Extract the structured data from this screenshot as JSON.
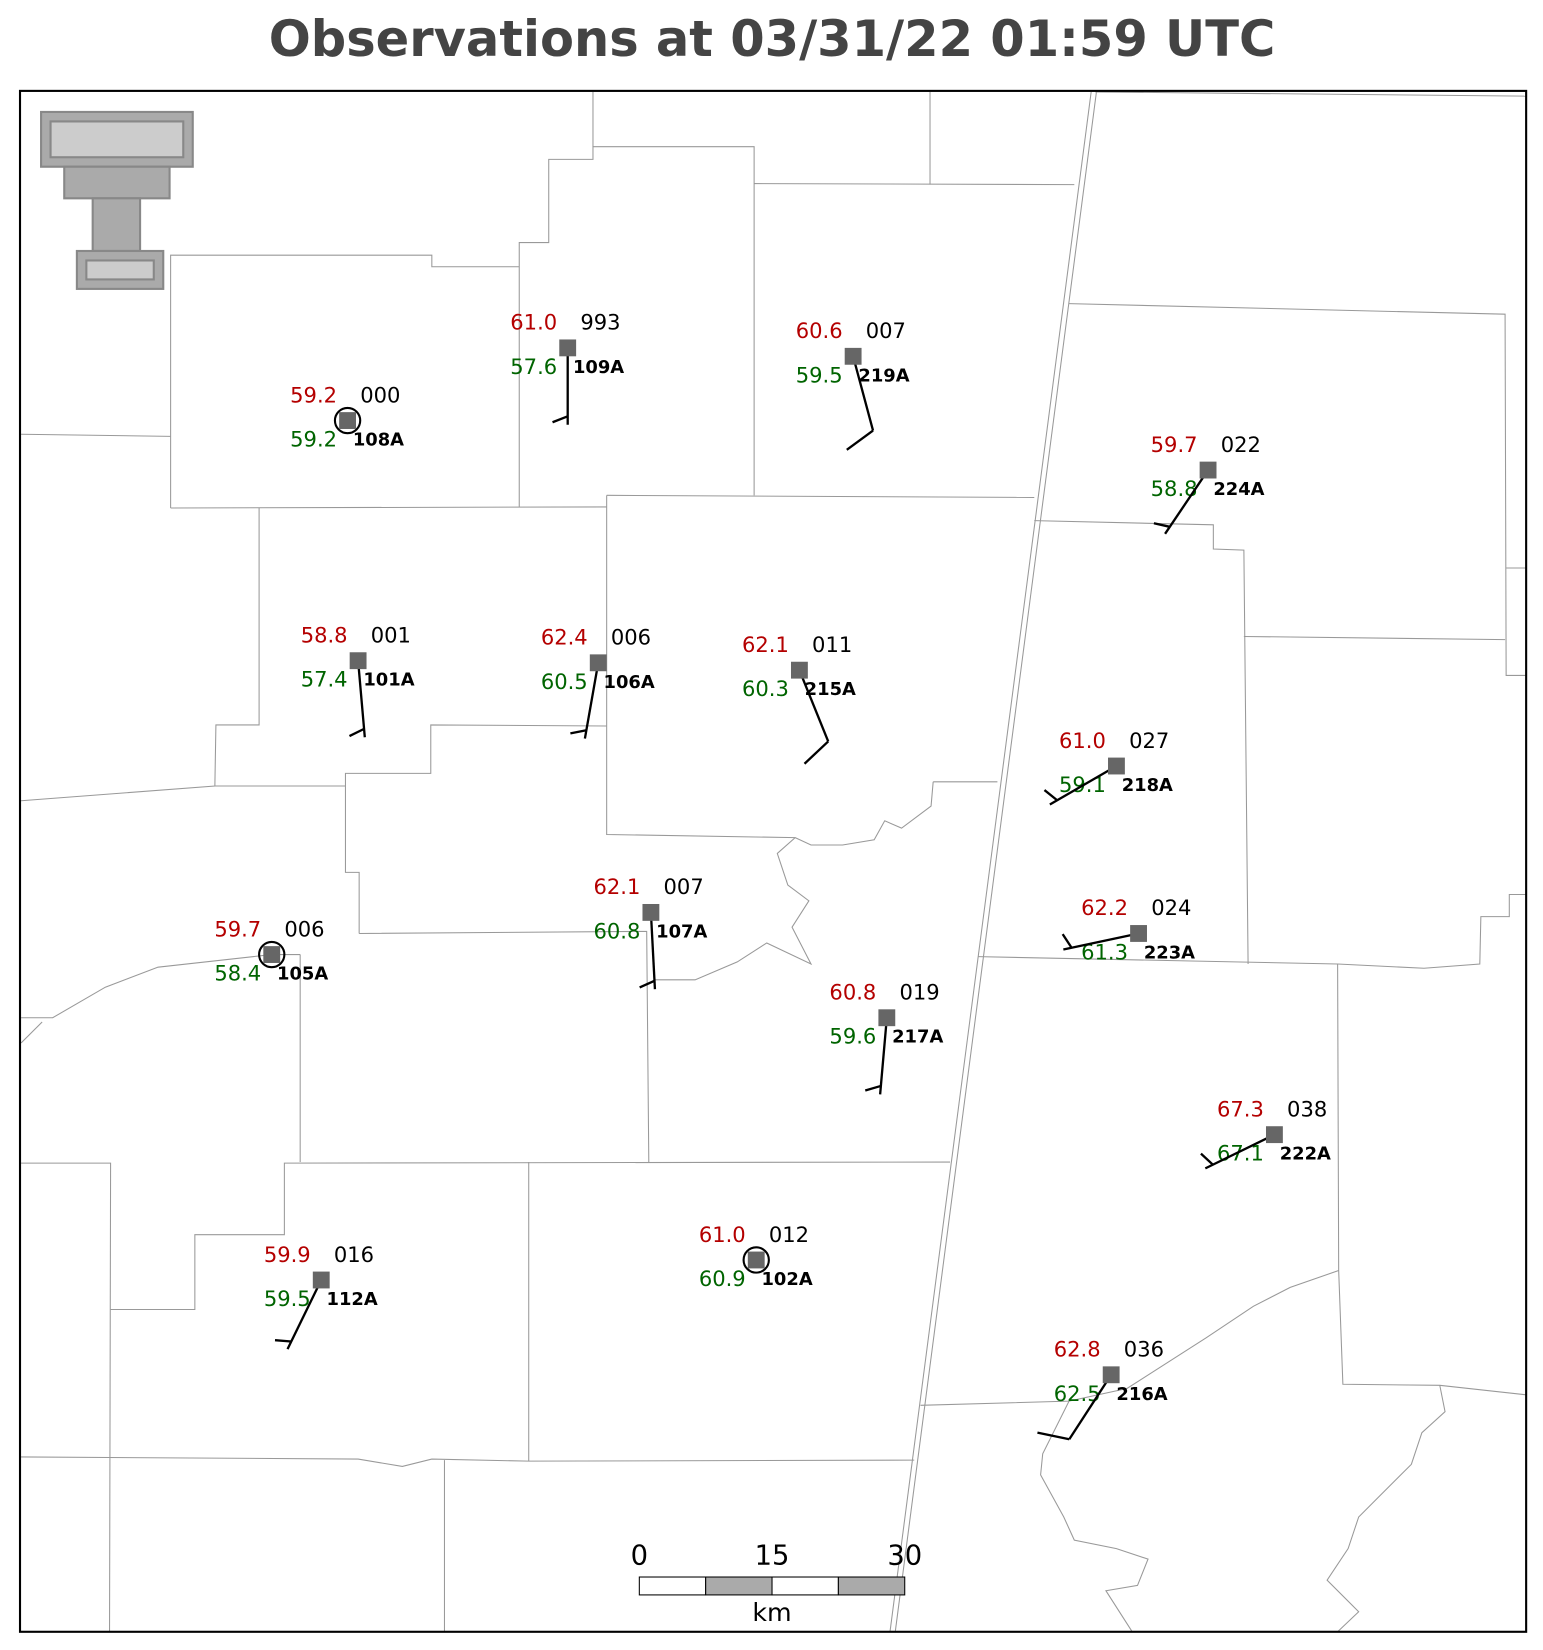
{
  "title": "Observations at 03/31/22 01:59 UTC",
  "stations": [
    {
      "id": "108A",
      "temp": "59.2",
      "dewpoint": "59.2",
      "pressure": "000",
      "wind_dir": 0,
      "wind_speed": 0
    },
    {
      "id": "109A",
      "temp": "61.0",
      "dewpoint": "57.6",
      "pressure": "993",
      "wind_dir": 180,
      "wind_speed": 5
    },
    {
      "id": "219A",
      "temp": "60.6",
      "dewpoint": "59.5",
      "pressure": "007",
      "wind_dir": 165,
      "wind_speed": 10
    },
    {
      "id": "224A",
      "temp": "59.7",
      "dewpoint": "58.8",
      "pressure": "022",
      "wind_dir": 214,
      "wind_speed": 5
    },
    {
      "id": "101A",
      "temp": "58.8",
      "dewpoint": "57.4",
      "pressure": "001",
      "wind_dir": 175,
      "wind_speed": 5
    },
    {
      "id": "106A",
      "temp": "62.4",
      "dewpoint": "60.5",
      "pressure": "006",
      "wind_dir": 190,
      "wind_speed": 5
    },
    {
      "id": "215A",
      "temp": "62.1",
      "dewpoint": "60.3",
      "pressure": "011",
      "wind_dir": 158,
      "wind_speed": 10
    },
    {
      "id": "218A",
      "temp": "61.0",
      "dewpoint": "59.1",
      "pressure": "027",
      "wind_dir": 240,
      "wind_speed": 5
    },
    {
      "id": "223A",
      "temp": "62.2",
      "dewpoint": "61.3",
      "pressure": "024",
      "wind_dir": 258,
      "wind_speed": 5
    },
    {
      "id": "107A",
      "temp": "62.1",
      "dewpoint": "60.8",
      "pressure": "007",
      "wind_dir": 177,
      "wind_speed": 5
    },
    {
      "id": "105A",
      "temp": "59.7",
      "dewpoint": "58.4",
      "pressure": "006",
      "wind_dir": 0,
      "wind_speed": 0
    },
    {
      "id": "217A",
      "temp": "60.8",
      "dewpoint": "59.6",
      "pressure": "019",
      "wind_dir": 185,
      "wind_speed": 5
    },
    {
      "id": "222A",
      "temp": "67.3",
      "dewpoint": "67.1",
      "pressure": "038",
      "wind_dir": 244,
      "wind_speed": 5
    },
    {
      "id": "112A",
      "temp": "59.9",
      "dewpoint": "59.5",
      "pressure": "016",
      "wind_dir": 206,
      "wind_speed": 5
    },
    {
      "id": "102A",
      "temp": "61.0",
      "dewpoint": "60.9",
      "pressure": "012",
      "wind_dir": 0,
      "wind_speed": 0
    },
    {
      "id": "216A",
      "temp": "62.8",
      "dewpoint": "62.5",
      "pressure": "036",
      "wind_dir": 213,
      "wind_speed": 10
    }
  ],
  "scale_bar": {
    "ticks": [
      0,
      15,
      30
    ],
    "unit": "km"
  }
}
